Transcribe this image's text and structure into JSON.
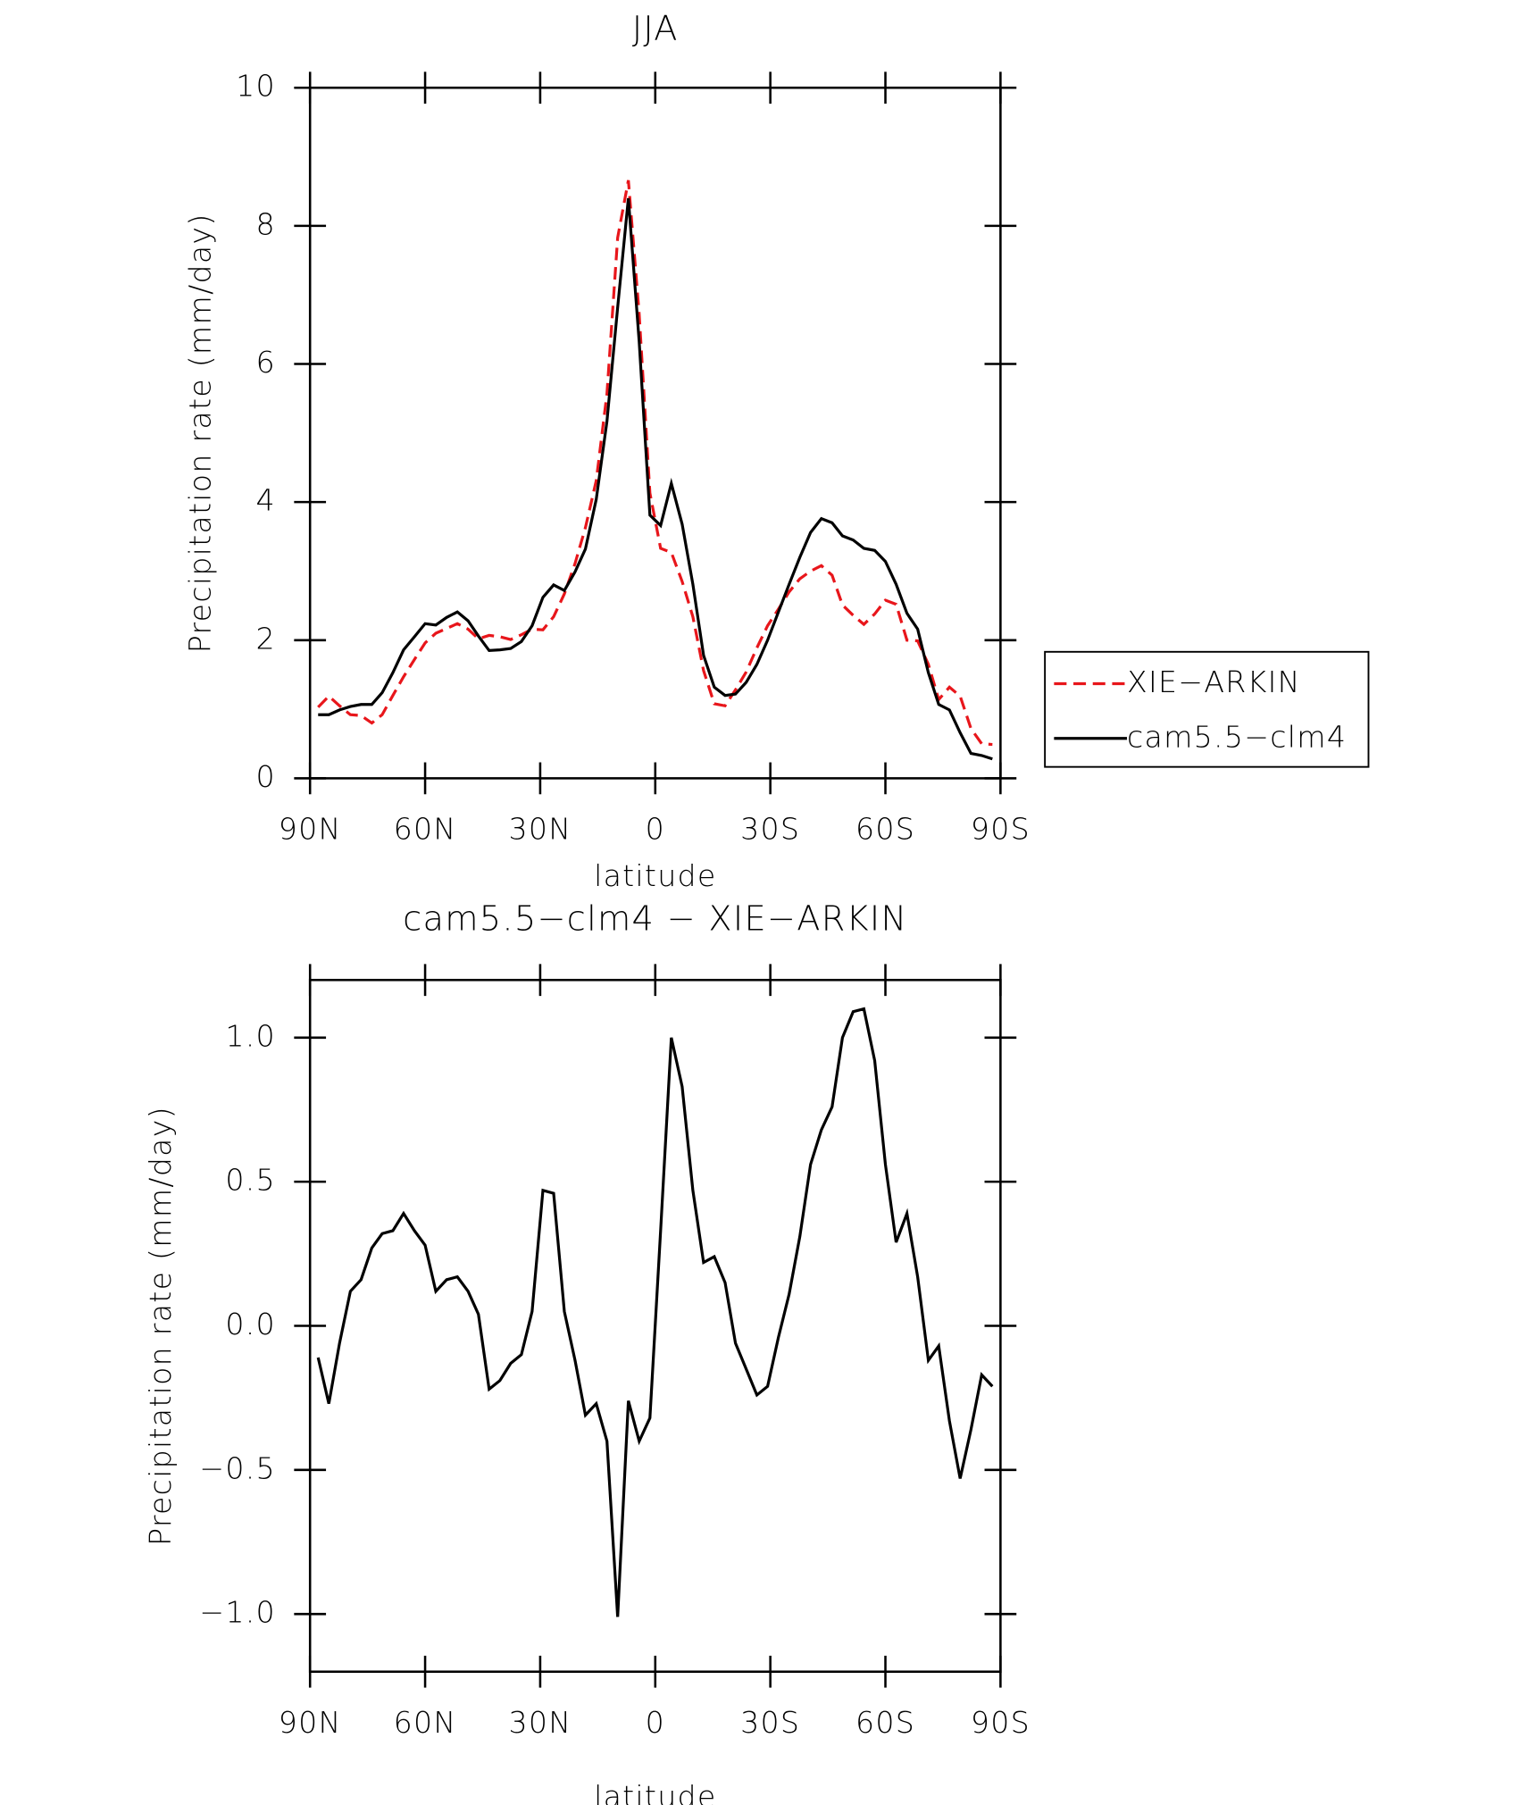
{
  "chart_data": [
    {
      "type": "line",
      "title": "JJA",
      "x_label": "latitude",
      "y_label": "Precipitation rate (mm/day)",
      "x": [
        87.9,
        85.1,
        82.3,
        79.5,
        76.7,
        73.9,
        71.2,
        68.4,
        65.6,
        62.8,
        60.0,
        57.2,
        54.4,
        51.6,
        48.8,
        46.1,
        43.3,
        40.5,
        37.7,
        34.9,
        32.1,
        29.3,
        26.5,
        23.7,
        20.9,
        18.2,
        15.4,
        12.6,
        9.8,
        7.0,
        4.2,
        1.4,
        -1.4,
        -4.2,
        -7.0,
        -9.8,
        -12.6,
        -15.4,
        -18.2,
        -20.9,
        -23.7,
        -26.5,
        -29.3,
        -32.1,
        -34.9,
        -37.7,
        -40.5,
        -43.3,
        -46.1,
        -48.8,
        -51.6,
        -54.4,
        -57.2,
        -60.0,
        -62.8,
        -65.6,
        -68.4,
        -71.2,
        -73.9,
        -76.7,
        -79.5,
        -82.3,
        -85.1,
        -87.9
      ],
      "series": [
        {
          "name": "XIE−ARKIN",
          "color": "#e8161b",
          "dash": true,
          "values": [
            1.03,
            1.19,
            1.05,
            0.92,
            0.91,
            0.8,
            0.92,
            1.2,
            1.47,
            1.72,
            1.96,
            2.1,
            2.17,
            2.24,
            2.16,
            2.02,
            2.07,
            2.05,
            2.01,
            2.08,
            2.16,
            2.15,
            2.34,
            2.67,
            3.11,
            3.63,
            4.31,
            5.57,
            7.83,
            8.66,
            6.72,
            4.13,
            3.33,
            3.27,
            2.85,
            2.34,
            1.56,
            1.08,
            1.05,
            1.28,
            1.54,
            1.89,
            2.21,
            2.45,
            2.7,
            2.89,
            3.0,
            3.08,
            2.94,
            2.51,
            2.36,
            2.23,
            2.38,
            2.58,
            2.52,
            2.0,
            1.99,
            1.65,
            1.14,
            1.32,
            1.19,
            0.72,
            0.5,
            0.49
          ]
        },
        {
          "name": "cam5.5−clm4",
          "color": "#000000",
          "dash": false,
          "values": [
            0.92,
            0.92,
            0.99,
            1.04,
            1.07,
            1.07,
            1.24,
            1.53,
            1.86,
            2.05,
            2.24,
            2.22,
            2.33,
            2.41,
            2.28,
            2.06,
            1.85,
            1.86,
            1.88,
            1.98,
            2.21,
            2.62,
            2.8,
            2.72,
            2.99,
            3.32,
            4.04,
            5.17,
            6.82,
            8.4,
            6.32,
            3.81,
            3.66,
            4.27,
            3.68,
            2.81,
            1.78,
            1.32,
            1.2,
            1.22,
            1.39,
            1.65,
            2.0,
            2.41,
            2.81,
            3.2,
            3.56,
            3.76,
            3.7,
            3.51,
            3.45,
            3.33,
            3.3,
            3.14,
            2.81,
            2.39,
            2.16,
            1.53,
            1.07,
            0.99,
            0.66,
            0.36,
            0.33,
            0.28
          ]
        }
      ],
      "xlim": [
        90,
        -90
      ],
      "xticks": [
        {
          "value": 90,
          "label": "90N"
        },
        {
          "value": 60,
          "label": "60N"
        },
        {
          "value": 30,
          "label": "30N"
        },
        0,
        {
          "value": -30,
          "label": "30S"
        },
        {
          "value": -60,
          "label": "60S"
        },
        {
          "value": -90,
          "label": "90S"
        }
      ],
      "ylim": [
        0,
        10
      ],
      "yticks": [
        0,
        2,
        4,
        6,
        8,
        10
      ],
      "legend": "right"
    },
    {
      "type": "line",
      "title": "cam5.5−clm4 − XIE−ARKIN",
      "x_label": "latitude",
      "y_label": "Precipitation rate (mm/day)",
      "x": [
        87.9,
        85.1,
        82.3,
        79.5,
        76.7,
        73.9,
        71.2,
        68.4,
        65.6,
        62.8,
        60.0,
        57.2,
        54.4,
        51.6,
        48.8,
        46.1,
        43.3,
        40.5,
        37.7,
        34.9,
        32.1,
        29.3,
        26.5,
        23.7,
        20.9,
        18.2,
        15.4,
        12.6,
        9.8,
        7.0,
        4.2,
        1.4,
        -1.4,
        -4.2,
        -7.0,
        -9.8,
        -12.6,
        -15.4,
        -18.2,
        -20.9,
        -23.7,
        -26.5,
        -29.3,
        -32.1,
        -34.9,
        -37.7,
        -40.5,
        -43.3,
        -46.1,
        -48.8,
        -51.6,
        -54.4,
        -57.2,
        -60.0,
        -62.8,
        -65.6,
        -68.4,
        -71.2,
        -73.9,
        -76.7,
        -79.5,
        -82.3,
        -85.1,
        -87.9
      ],
      "color": "#000000",
      "values": [
        -0.11,
        -0.27,
        -0.06,
        0.12,
        0.16,
        0.27,
        0.32,
        0.33,
        0.39,
        0.33,
        0.28,
        0.12,
        0.16,
        0.17,
        0.12,
        0.04,
        -0.22,
        -0.19,
        -0.13,
        -0.1,
        0.05,
        0.47,
        0.46,
        0.05,
        -0.12,
        -0.31,
        -0.27,
        -0.4,
        -1.01,
        -0.26,
        -0.4,
        -0.32,
        0.33,
        1.0,
        0.83,
        0.47,
        0.22,
        0.24,
        0.15,
        -0.06,
        -0.15,
        -0.24,
        -0.21,
        -0.04,
        0.11,
        0.31,
        0.56,
        0.68,
        0.76,
        1.0,
        1.09,
        1.1,
        0.92,
        0.56,
        0.29,
        0.39,
        0.17,
        -0.12,
        -0.07,
        -0.33,
        -0.53,
        -0.36,
        -0.17,
        -0.21
      ],
      "xlim": [
        90,
        -90
      ],
      "xticks": [
        {
          "value": 90,
          "label": "90N"
        },
        {
          "value": 60,
          "label": "60N"
        },
        {
          "value": 30,
          "label": "30N"
        },
        0,
        {
          "value": -30,
          "label": "30S"
        },
        {
          "value": -60,
          "label": "60S"
        },
        {
          "value": -90,
          "label": "90S"
        }
      ],
      "ylim": [
        -1.2,
        1.2
      ],
      "yticks": [
        {
          "value": -1,
          "label": "−1.0"
        },
        {
          "value": -0.5,
          "label": "−0.5"
        },
        {
          "value": 0,
          "label": "0.0"
        },
        {
          "value": 0.5,
          "label": "0.5"
        },
        {
          "value": 1,
          "label": "1.0"
        }
      ]
    }
  ]
}
